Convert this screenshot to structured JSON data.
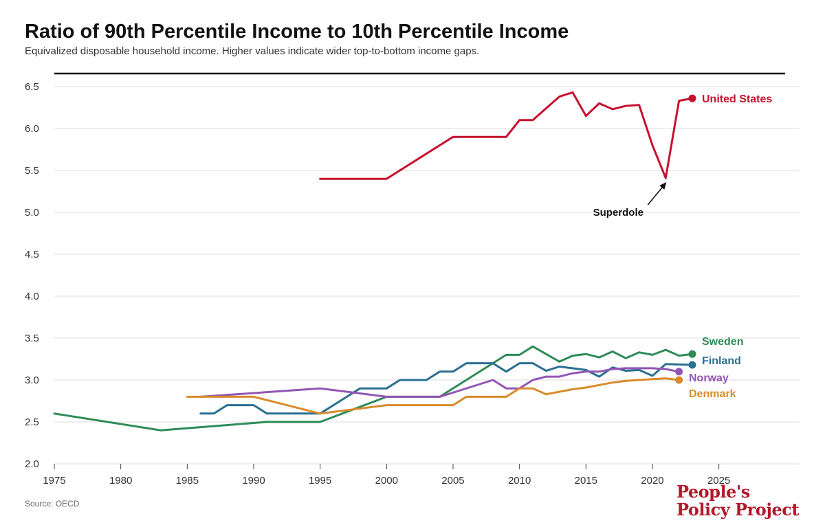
{
  "title": "Ratio of 90th Percentile Income to 10th Percentile Income",
  "subtitle": "Equivalized disposable household income. Higher values indicate wider top-to-bottom income gaps.",
  "source": "Source: OECD",
  "logo": {
    "line1": "People's",
    "line2": "Policy Project"
  },
  "colors": {
    "United States": "#c8102e",
    "Sweden": "#2e8b57",
    "Finland": "#2b6f92",
    "Norway": "#9356b5",
    "Denmark": "#d98b2b",
    "grid": "#dddddd",
    "text": "#111111"
  },
  "chart_data": {
    "type": "line",
    "title": "Ratio of 90th Percentile Income to 10th Percentile Income",
    "xlabel": "",
    "ylabel": "",
    "xlim": [
      1975,
      2030
    ],
    "ylim": [
      2.0,
      6.5
    ],
    "x_ticks": [
      1975,
      1980,
      1985,
      1990,
      1995,
      2000,
      2005,
      2010,
      2015,
      2020,
      2025
    ],
    "y_ticks": [
      "2.0",
      "2.5",
      "3.0",
      "3.5",
      "4.0",
      "4.5",
      "5.0",
      "5.5",
      "6.0",
      "6.5"
    ],
    "grid": true,
    "legend": "end-of-line labels",
    "annotation": {
      "text": "Superdole",
      "x": 2021,
      "y": 5.41
    },
    "series": [
      {
        "name": "United States",
        "x": [
          1995,
          2000,
          2005,
          2009,
          2010,
          2011,
          2013,
          2014,
          2015,
          2016,
          2017,
          2018,
          2019,
          2020,
          2021,
          2022,
          2023
        ],
        "y": [
          5.4,
          5.4,
          5.9,
          5.9,
          6.1,
          6.1,
          6.38,
          6.43,
          6.15,
          6.3,
          6.23,
          6.27,
          6.28,
          5.8,
          5.41,
          6.33,
          6.36
        ]
      },
      {
        "name": "Sweden",
        "x": [
          1975,
          1983,
          1991,
          1995,
          2000,
          2004,
          2009,
          2010,
          2011,
          2013,
          2014,
          2015,
          2016,
          2017,
          2018,
          2019,
          2020,
          2021,
          2022,
          2023
        ],
        "y": [
          2.6,
          2.4,
          2.5,
          2.5,
          2.8,
          2.8,
          3.3,
          3.3,
          3.4,
          3.22,
          3.29,
          3.31,
          3.27,
          3.34,
          3.26,
          3.33,
          3.3,
          3.36,
          3.29,
          3.31
        ]
      },
      {
        "name": "Finland",
        "x": [
          1986,
          1987,
          1988,
          1990,
          1991,
          1995,
          1998,
          2000,
          2001,
          2003,
          2004,
          2005,
          2006,
          2008,
          2009,
          2010,
          2011,
          2012,
          2013,
          2015,
          2016,
          2017,
          2018,
          2019,
          2020,
          2021,
          2023
        ],
        "y": [
          2.6,
          2.6,
          2.7,
          2.7,
          2.6,
          2.6,
          2.9,
          2.9,
          3.0,
          3.0,
          3.1,
          3.1,
          3.2,
          3.2,
          3.1,
          3.2,
          3.2,
          3.11,
          3.16,
          3.12,
          3.04,
          3.15,
          3.11,
          3.12,
          3.05,
          3.19,
          3.18
        ]
      },
      {
        "name": "Norway",
        "x": [
          1986,
          1995,
          2000,
          2004,
          2008,
          2009,
          2010,
          2011,
          2012,
          2013,
          2014,
          2015,
          2016,
          2017,
          2018,
          2019,
          2020,
          2021,
          2022
        ],
        "y": [
          2.8,
          2.9,
          2.8,
          2.8,
          3.0,
          2.9,
          2.9,
          3.0,
          3.04,
          3.04,
          3.08,
          3.1,
          3.1,
          3.13,
          3.14,
          3.14,
          3.14,
          3.13,
          3.1
        ]
      },
      {
        "name": "Denmark",
        "x": [
          1985,
          1990,
          1995,
          2000,
          2005,
          2006,
          2009,
          2010,
          2011,
          2012,
          2013,
          2014,
          2015,
          2016,
          2017,
          2018,
          2019,
          2020,
          2021,
          2022
        ],
        "y": [
          2.8,
          2.8,
          2.6,
          2.7,
          2.7,
          2.8,
          2.8,
          2.9,
          2.9,
          2.83,
          2.86,
          2.89,
          2.91,
          2.94,
          2.97,
          2.99,
          3.0,
          3.01,
          3.02,
          3.0
        ]
      }
    ]
  }
}
